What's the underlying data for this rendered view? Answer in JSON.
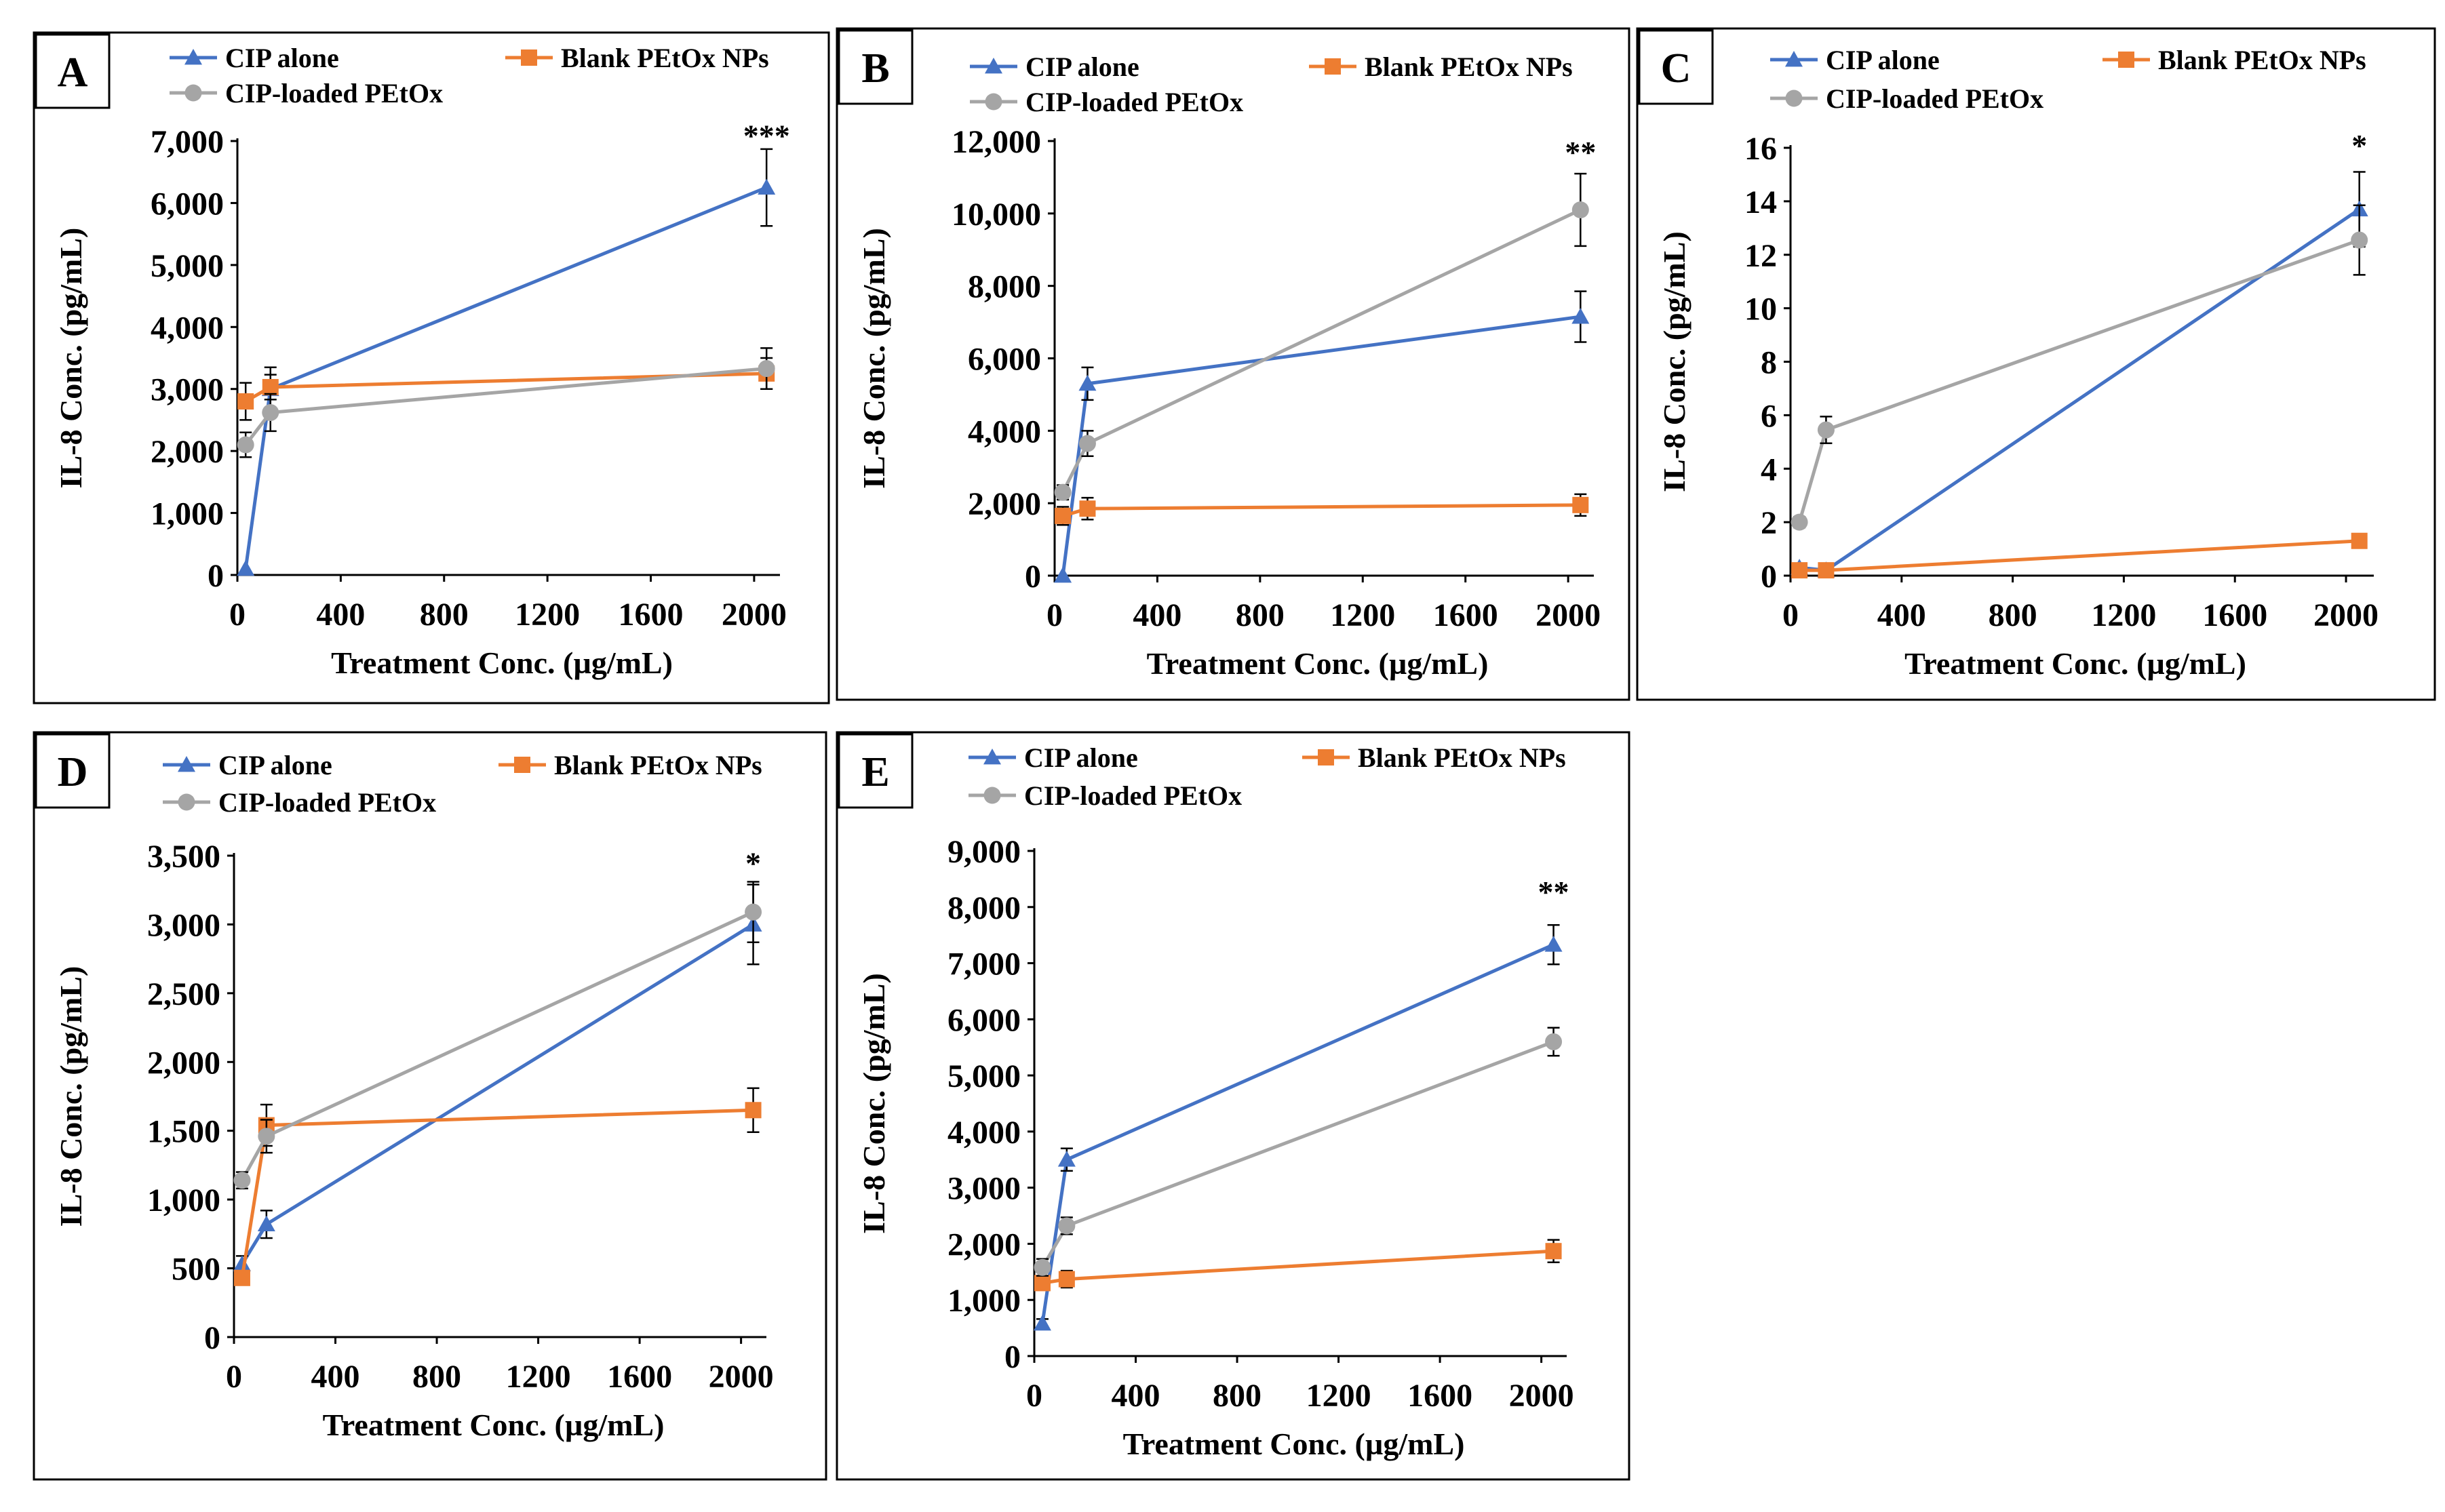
{
  "figure": {
    "x_label": "Treatment Conc. (µg/mL)",
    "y_label": "IL-8 Conc. (pg/mL)"
  },
  "colors": {
    "cip_alone": "#4472C4",
    "blank_petox": "#ED7D31",
    "cip_loaded": "#A5A5A5",
    "axis": "#000000",
    "frame": "#000000"
  },
  "chart_data": [
    {
      "panel": "A",
      "type": "line",
      "xlabel": "Treatment Conc. (µg/mL)",
      "ylabel": "IL-8 Conc. (pg/mL)",
      "xlim": [
        0,
        2100
      ],
      "ylim": [
        0,
        7000
      ],
      "x_ticks": [
        0,
        400,
        800,
        1200,
        1600,
        2000
      ],
      "x_tick_labels": [
        "0",
        "400",
        "800",
        "1200",
        "1600",
        "2000"
      ],
      "y_ticks": [
        0,
        1000,
        2000,
        3000,
        4000,
        5000,
        6000,
        7000
      ],
      "y_tick_labels": [
        "0",
        "1,000",
        "2,000",
        "3,000",
        "4,000",
        "5,000",
        "6,000",
        "7,000"
      ],
      "annotation": "***",
      "annotation_x": 2048,
      "annotation_y": 6920,
      "legend": [
        "CIP alone",
        "Blank PEtOx NPs",
        "CIP-loaded PEtOx"
      ],
      "series": [
        {
          "name": "CIP alone",
          "marker": "triangle",
          "x": [
            32,
            128,
            2048
          ],
          "y": [
            100,
            3000,
            6250
          ],
          "err": [
            0,
            350,
            620
          ]
        },
        {
          "name": "Blank PEtOx NPs",
          "marker": "square",
          "x": [
            32,
            128,
            2048
          ],
          "y": [
            2800,
            3030,
            3250
          ],
          "err": [
            300,
            200,
            250
          ]
        },
        {
          "name": "CIP-loaded PEtOx",
          "marker": "circle",
          "x": [
            32,
            128,
            2048
          ],
          "y": [
            2100,
            2620,
            3330
          ],
          "err": [
            200,
            300,
            330
          ]
        }
      ]
    },
    {
      "panel": "B",
      "type": "line",
      "xlabel": "Treatment Conc. (µg/mL)",
      "ylabel": "IL-8 Conc. (pg/mL)",
      "xlim": [
        0,
        2100
      ],
      "ylim": [
        0,
        12000
      ],
      "x_ticks": [
        0,
        400,
        800,
        1200,
        1600,
        2000
      ],
      "x_tick_labels": [
        "0",
        "400",
        "800",
        "1200",
        "1600",
        "2000"
      ],
      "y_ticks": [
        0,
        2000,
        4000,
        6000,
        8000,
        10000,
        12000
      ],
      "y_tick_labels": [
        "0",
        "2,000",
        "4,000",
        "6,000",
        "8,000",
        "10,000",
        "12,000"
      ],
      "annotation": "**",
      "annotation_x": 2048,
      "annotation_y": 11400,
      "legend": [
        "CIP alone",
        "Blank PEtOx NPs",
        "CIP-loaded PEtOx"
      ],
      "series": [
        {
          "name": "CIP alone",
          "marker": "triangle",
          "x": [
            32,
            128,
            2048
          ],
          "y": [
            0,
            5300,
            7150
          ],
          "err": [
            0,
            450,
            700
          ]
        },
        {
          "name": "Blank PEtOx NPs",
          "marker": "square",
          "x": [
            32,
            128,
            2048
          ],
          "y": [
            1650,
            1850,
            1950
          ],
          "err": [
            250,
            300,
            300
          ]
        },
        {
          "name": "CIP-loaded PEtOx",
          "marker": "circle",
          "x": [
            32,
            128,
            2048
          ],
          "y": [
            2300,
            3650,
            10100
          ],
          "err": [
            200,
            350,
            1000
          ]
        }
      ]
    },
    {
      "panel": "C",
      "type": "line",
      "xlabel": "Treatment Conc. (µg/mL)",
      "ylabel": "IL-8 Conc. (pg/mL)",
      "xlim": [
        0,
        2100
      ],
      "ylim": [
        0,
        16
      ],
      "x_ticks": [
        0,
        400,
        800,
        1200,
        1600,
        2000
      ],
      "x_tick_labels": [
        "0",
        "400",
        "800",
        "1200",
        "1600",
        "2000"
      ],
      "y_ticks": [
        0,
        2,
        4,
        6,
        8,
        10,
        12,
        14,
        16
      ],
      "y_tick_labels": [
        "0",
        "2",
        "4",
        "6",
        "8",
        "10",
        "12",
        "14",
        "16"
      ],
      "annotation": "*",
      "annotation_x": 2048,
      "annotation_y": 15.7,
      "legend": [
        "CIP alone",
        "Blank PEtOx NPs",
        "CIP-loaded PEtOx"
      ],
      "series": [
        {
          "name": "CIP alone",
          "marker": "triangle",
          "x": [
            32,
            128,
            2048
          ],
          "y": [
            0.3,
            0.2,
            13.7
          ],
          "err": [
            0.15,
            0.1,
            1.4
          ]
        },
        {
          "name": "Blank PEtOx NPs",
          "marker": "square",
          "x": [
            32,
            128,
            2048
          ],
          "y": [
            0.2,
            0.2,
            1.3
          ],
          "err": [
            0.1,
            0.1,
            0.1
          ]
        },
        {
          "name": "CIP-loaded PEtOx",
          "marker": "circle",
          "x": [
            32,
            128,
            2048
          ],
          "y": [
            2.0,
            5.45,
            12.55
          ],
          "err": [
            0.2,
            0.5,
            1.3
          ]
        }
      ]
    },
    {
      "panel": "D",
      "type": "line",
      "xlabel": "Treatment Conc. (µg/mL)",
      "ylabel": "IL-8 Conc. (pg/mL)",
      "xlim": [
        0,
        2100
      ],
      "ylim": [
        0,
        3500
      ],
      "x_ticks": [
        0,
        400,
        800,
        1200,
        1600,
        2000
      ],
      "x_tick_labels": [
        "0",
        "400",
        "800",
        "1200",
        "1600",
        "2000"
      ],
      "y_ticks": [
        0,
        500,
        1000,
        1500,
        2000,
        2500,
        3000,
        3500
      ],
      "y_tick_labels": [
        "0",
        "500",
        "1,000",
        "1,500",
        "2,000",
        "2,500",
        "3,000",
        "3,500"
      ],
      "annotation": "*",
      "annotation_x": 2048,
      "annotation_y": 3370,
      "legend": [
        "CIP alone",
        "Blank PEtOx NPs",
        "CIP-loaded PEtOx"
      ],
      "series": [
        {
          "name": "CIP alone",
          "marker": "triangle",
          "x": [
            32,
            128,
            2048
          ],
          "y": [
            530,
            820,
            3000
          ],
          "err": [
            60,
            100,
            290
          ]
        },
        {
          "name": "Blank PEtOx NPs",
          "marker": "square",
          "x": [
            32,
            128,
            2048
          ],
          "y": [
            430,
            1540,
            1650
          ],
          "err": [
            40,
            150,
            160
          ]
        },
        {
          "name": "CIP-loaded PEtOx",
          "marker": "circle",
          "x": [
            32,
            128,
            2048
          ],
          "y": [
            1140,
            1460,
            3090
          ],
          "err": [
            60,
            120,
            220
          ]
        }
      ]
    },
    {
      "panel": "E",
      "type": "line",
      "xlabel": "Treatment Conc. (µg/mL)",
      "ylabel": "IL-8 Conc. (pg/mL)",
      "xlim": [
        0,
        2100
      ],
      "ylim": [
        0,
        9000
      ],
      "x_ticks": [
        0,
        400,
        800,
        1200,
        1600,
        2000
      ],
      "x_tick_labels": [
        "0",
        "400",
        "800",
        "1200",
        "1600",
        "2000"
      ],
      "y_ticks": [
        0,
        1000,
        2000,
        3000,
        4000,
        5000,
        6000,
        7000,
        8000,
        9000
      ],
      "y_tick_labels": [
        "0",
        "1,000",
        "2,000",
        "3,000",
        "4,000",
        "5,000",
        "6,000",
        "7,000",
        "8,000",
        "9,000"
      ],
      "annotation": "**",
      "annotation_x": 2048,
      "annotation_y": 8080,
      "legend": [
        "CIP alone",
        "Blank PEtOx NPs",
        "CIP-loaded PEtOx"
      ],
      "series": [
        {
          "name": "CIP alone",
          "marker": "triangle",
          "x": [
            32,
            128,
            2048
          ],
          "y": [
            580,
            3500,
            7330
          ],
          "err": [
            80,
            200,
            350
          ]
        },
        {
          "name": "Blank PEtOx NPs",
          "marker": "square",
          "x": [
            32,
            128,
            2048
          ],
          "y": [
            1300,
            1370,
            1870
          ],
          "err": [
            100,
            150,
            200
          ]
        },
        {
          "name": "CIP-loaded PEtOx",
          "marker": "circle",
          "x": [
            32,
            128,
            2048
          ],
          "y": [
            1580,
            2320,
            5600
          ],
          "err": [
            150,
            150,
            250
          ]
        }
      ]
    }
  ]
}
